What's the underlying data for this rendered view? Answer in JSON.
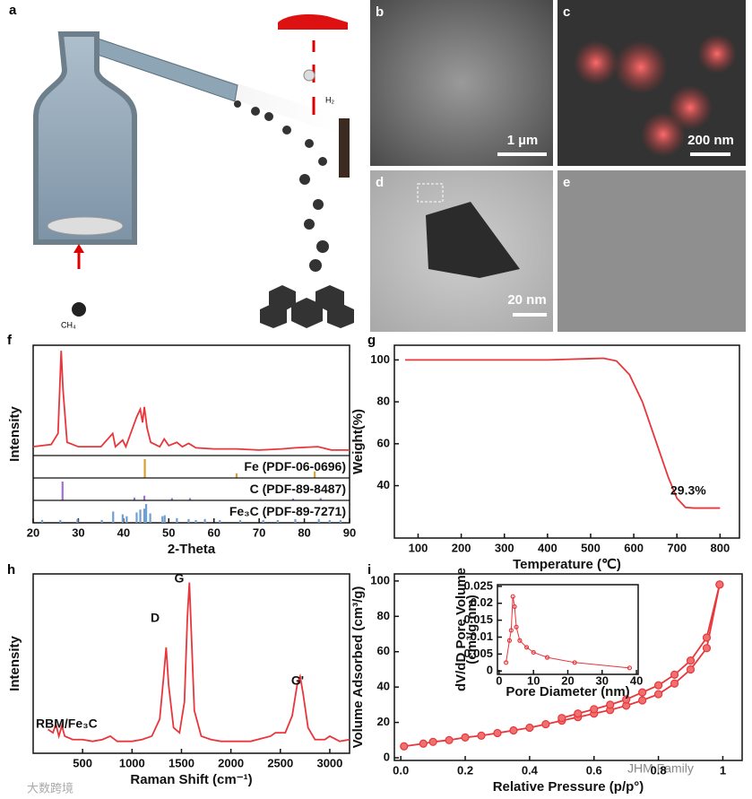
{
  "panel_labels": [
    "a",
    "b",
    "c",
    "d",
    "e",
    "f",
    "g",
    "h",
    "i"
  ],
  "schematic": {
    "h2_label": "H₂",
    "ch4_label": "CH₄"
  },
  "micrographs": {
    "b_scale": "1 µm",
    "c_scale": "200 nm",
    "d_scale": "20 nm"
  },
  "watermarks": [
    "JHM Family",
    "大数跨境"
  ],
  "chart_data": [
    {
      "type": "line",
      "xlabel": "2-Theta",
      "ylabel": "Intensity",
      "xlim": [
        20,
        90
      ],
      "ylim": [
        0,
        1
      ],
      "xticks": [
        20,
        30,
        40,
        50,
        60,
        70,
        80,
        90
      ],
      "series": [
        {
          "color": "#e8363b",
          "x": [
            20,
            24,
            25.5,
            26.2,
            26.6,
            27.5,
            30,
            35,
            37.6,
            38.2,
            39.8,
            40.5,
            42.9,
            43.7,
            44.2,
            44.6,
            45.2,
            46,
            48,
            49,
            50,
            51.8,
            53,
            54.4,
            56,
            60,
            65,
            70,
            75,
            78,
            83,
            86,
            90
          ],
          "values": [
            0.08,
            0.1,
            0.2,
            0.95,
            0.6,
            0.12,
            0.08,
            0.08,
            0.2,
            0.08,
            0.14,
            0.08,
            0.35,
            0.42,
            0.3,
            0.44,
            0.25,
            0.12,
            0.08,
            0.15,
            0.09,
            0.12,
            0.08,
            0.11,
            0.07,
            0.06,
            0.06,
            0.05,
            0.06,
            0.07,
            0.08,
            0.05,
            0.05
          ]
        }
      ],
      "references": [
        {
          "name": "Fe (PDF-06-0696)",
          "color": "#d9a033",
          "x": [
            44.7,
            65.0,
            82.3
          ],
          "values": [
            1,
            0.25,
            0.35
          ]
        },
        {
          "name": "C (PDF-89-8487)",
          "color": "#a070d0",
          "x": [
            26.5,
            42.4,
            44.6,
            50.7,
            54.7,
            77.5,
            83.6
          ],
          "values": [
            1,
            0.15,
            0.25,
            0.12,
            0.12,
            0.1,
            0.12
          ]
        },
        {
          "name": "Fe₃C (PDF-89-7271)",
          "color": "#6f9fcf",
          "x": [
            22,
            26,
            29.8,
            35.2,
            37.7,
            39.8,
            40.7,
            42.9,
            43.7,
            44.6,
            45.0,
            45.9,
            48.6,
            49.1,
            51.8,
            54.4,
            56.0,
            58.0,
            61.3,
            65.8,
            70.9,
            74.1,
            78.0,
            83.2,
            85.6,
            88.0
          ],
          "values": [
            0.15,
            0.15,
            0.2,
            0.15,
            0.6,
            0.45,
            0.35,
            0.55,
            0.7,
            0.75,
            1,
            0.5,
            0.35,
            0.4,
            0.25,
            0.2,
            0.15,
            0.2,
            0.15,
            0.15,
            0.15,
            0.15,
            0.2,
            0.2,
            0.15,
            0.15
          ]
        }
      ]
    },
    {
      "type": "line",
      "xlabel": "Temperature (℃)",
      "ylabel": "Weight(%)",
      "xlim": [
        45,
        845
      ],
      "ylim": [
        15,
        107
      ],
      "xticks": [
        100,
        200,
        300,
        400,
        500,
        600,
        700,
        800
      ],
      "yticks": [
        40,
        60,
        80,
        100
      ],
      "annotations": [
        "29.3%"
      ],
      "series": [
        {
          "color": "#e8363b",
          "x": [
            70,
            200,
            400,
            500,
            530,
            560,
            590,
            620,
            650,
            680,
            700,
            720,
            740,
            800
          ],
          "values": [
            100,
            100,
            100,
            100.6,
            100.8,
            99.5,
            93,
            80,
            62,
            44,
            34,
            29.6,
            29.3,
            29.3
          ]
        }
      ]
    },
    {
      "type": "line",
      "xlabel": "Raman Shift (cm⁻¹)",
      "ylabel": "Intensity",
      "xlim": [
        0,
        3200
      ],
      "ylim": [
        0,
        1.05
      ],
      "xticks": [
        500,
        1000,
        1500,
        2000,
        2500,
        3000
      ],
      "annotations": [
        "D",
        "G",
        "G'",
        "RBM/Fe₃C"
      ],
      "series": [
        {
          "color": "#e8363b",
          "x": [
            150,
            200,
            230,
            260,
            290,
            320,
            400,
            500,
            600,
            700,
            780,
            850,
            1000,
            1100,
            1200,
            1280,
            1320,
            1345,
            1370,
            1420,
            1480,
            1530,
            1560,
            1580,
            1600,
            1630,
            1700,
            1800,
            1900,
            2000,
            2200,
            2400,
            2450,
            2550,
            2620,
            2670,
            2700,
            2730,
            2780,
            2850,
            2950,
            3000,
            3100,
            3200
          ],
          "values": [
            0.14,
            0.12,
            0.17,
            0.1,
            0.16,
            0.1,
            0.08,
            0.08,
            0.07,
            0.08,
            0.1,
            0.07,
            0.07,
            0.08,
            0.1,
            0.2,
            0.45,
            0.62,
            0.4,
            0.15,
            0.12,
            0.3,
            0.8,
            1.0,
            0.7,
            0.25,
            0.1,
            0.08,
            0.07,
            0.07,
            0.07,
            0.1,
            0.12,
            0.12,
            0.22,
            0.4,
            0.45,
            0.35,
            0.15,
            0.08,
            0.08,
            0.1,
            0.07,
            0.08
          ]
        }
      ]
    },
    {
      "type": "scatter",
      "xlabel": "Relative Pressure (p/p°)",
      "ylabel": "Volume Adsorbed (cm³/g)",
      "xlim": [
        -0.02,
        1.06
      ],
      "ylim": [
        -1.5,
        104
      ],
      "xticks": [
        {
          "value": 0,
          "label": "0.0"
        },
        0.2,
        0.4,
        0.6,
        0.8,
        1
      ],
      "yticks": [
        0,
        20,
        40,
        60,
        80,
        100
      ],
      "series": [
        {
          "color": "#e8363b",
          "x": [
            0.01,
            0.07,
            0.1,
            0.15,
            0.2,
            0.25,
            0.3,
            0.35,
            0.4,
            0.45,
            0.5,
            0.55,
            0.6,
            0.65,
            0.7,
            0.75,
            0.8,
            0.85,
            0.9,
            0.95,
            0.99
          ],
          "values": [
            6.5,
            8,
            9,
            10,
            11.5,
            12.5,
            14,
            15.5,
            17,
            19,
            21,
            23,
            25,
            27,
            29.5,
            32.5,
            36,
            42,
            50,
            62,
            98
          ]
        },
        {
          "color": "#e8363b",
          "x": [
            0.99,
            0.95,
            0.9,
            0.85,
            0.8,
            0.75,
            0.7,
            0.65,
            0.6,
            0.55,
            0.5
          ],
          "values": [
            98,
            68,
            55,
            47,
            41,
            37,
            33,
            30,
            27.5,
            25,
            22.5
          ]
        }
      ]
    },
    {
      "type": "scatter",
      "xlabel": "Pore Diameter (nm)",
      "ylabel": [
        "dV/dD Pore Volume",
        "(cm³/g·nm)"
      ],
      "xlim": [
        -0.5,
        40.5
      ],
      "ylim": [
        -0.001,
        0.0255
      ],
      "xticks": [
        0,
        10,
        20,
        30,
        40
      ],
      "yticks": [
        0,
        0.005,
        0.01,
        0.015,
        0.02,
        0.025
      ],
      "series": [
        {
          "color": "#e8363b",
          "x": [
            2,
            3,
            3.5,
            4,
            4.5,
            5,
            6,
            8,
            10,
            14,
            22,
            38
          ],
          "values": [
            0.0025,
            0.009,
            0.012,
            0.022,
            0.019,
            0.013,
            0.009,
            0.007,
            0.0055,
            0.004,
            0.0025,
            0.0009
          ]
        }
      ]
    }
  ]
}
